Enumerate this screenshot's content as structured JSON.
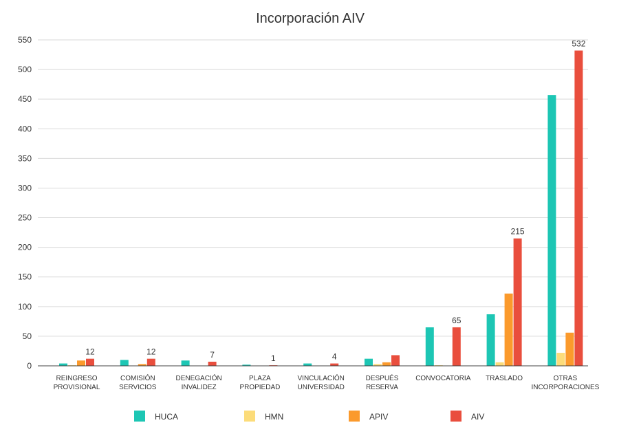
{
  "chart_data": {
    "type": "bar",
    "title": "Incorporación AIV",
    "xlabel": "",
    "ylabel": "",
    "ylim": [
      0,
      550
    ],
    "yticks": [
      0,
      50,
      100,
      150,
      200,
      250,
      300,
      350,
      400,
      450,
      500,
      550
    ],
    "grid": true,
    "legend_position": "bottom",
    "categories": [
      [
        "REINGRESO",
        "PROVISIONAL"
      ],
      [
        "COMISIÓN",
        "SERVICIOS"
      ],
      [
        "DENEGACIÓN",
        "INVALIDEZ"
      ],
      [
        "PLAZA",
        "PROPIEDAD"
      ],
      [
        "VINCULACIÓN",
        "UNIVERSIDAD"
      ],
      [
        "DESPUÉS",
        "RESERVA"
      ],
      [
        "CONVOCATORIA"
      ],
      [
        "TRASLADO"
      ],
      [
        "OTRAS",
        "INCORPORACIONES"
      ]
    ],
    "series": [
      {
        "name": "HUCA",
        "color": "#1dc6b4",
        "values": [
          4,
          10,
          9,
          2,
          4,
          12,
          65,
          87,
          457
        ]
      },
      {
        "name": "HMN",
        "color": "#fcdc7a",
        "values": [
          1,
          0,
          0,
          0,
          0,
          3,
          1,
          6,
          22
        ]
      },
      {
        "name": "APIV",
        "color": "#fb9a2c",
        "values": [
          9,
          3,
          0,
          0,
          0,
          6,
          0,
          122,
          56
        ]
      },
      {
        "name": "AIV",
        "color": "#e94e3d",
        "values": [
          12,
          12,
          7,
          1,
          4,
          18,
          65,
          215,
          532
        ]
      }
    ],
    "data_labels": [
      {
        "series": "AIV",
        "category_index": 0,
        "text": "12"
      },
      {
        "series": "AIV",
        "category_index": 1,
        "text": "12"
      },
      {
        "series": "AIV",
        "category_index": 2,
        "text": "7"
      },
      {
        "series": "AIV",
        "category_index": 3,
        "text": "1"
      },
      {
        "series": "AIV",
        "category_index": 4,
        "text": "4"
      },
      {
        "series": "AIV",
        "category_index": 6,
        "text": "65"
      },
      {
        "series": "AIV",
        "category_index": 7,
        "text": "215"
      },
      {
        "series": "AIV",
        "category_index": 8,
        "text": "532"
      }
    ]
  }
}
